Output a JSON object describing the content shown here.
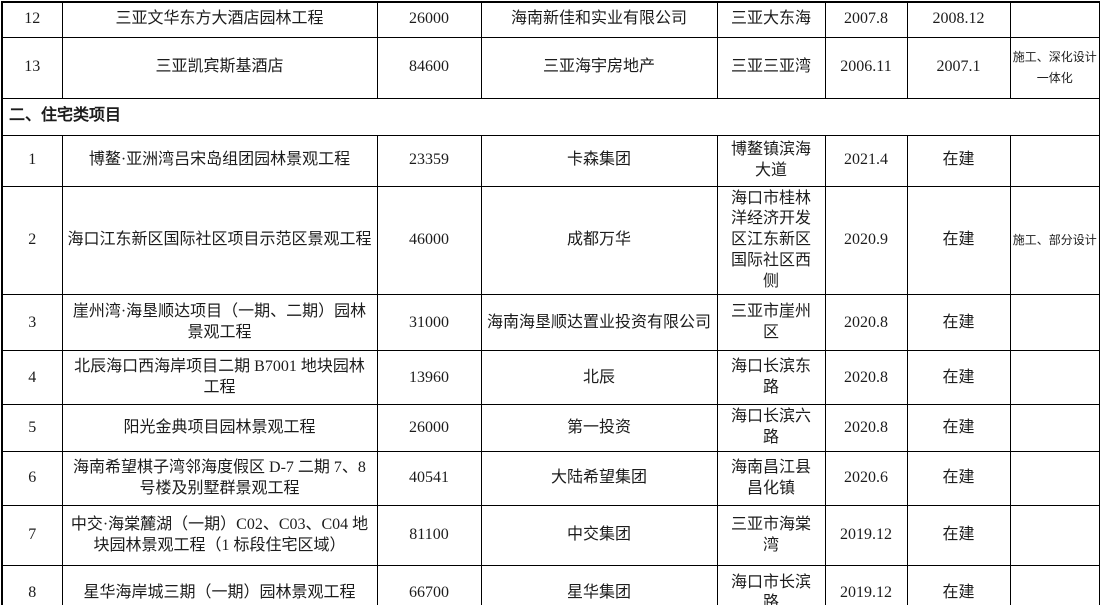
{
  "page": {
    "background_color": "#ffffff",
    "border_color": "#000000",
    "text_color": "#1c1c1c"
  },
  "table": {
    "sections": [
      {
        "heading": null,
        "rows": [
          {
            "no": "12",
            "project": "三亚文华东方大酒店园林工程",
            "area": "26000",
            "client": "海南新佳和实业有限公司",
            "location": "三亚大东海",
            "date": "2007.8",
            "status": "2008.12",
            "note": ""
          },
          {
            "no": "13",
            "project": "三亚凯宾斯基酒店",
            "area": "84600",
            "client": "三亚海宇房地产",
            "location": "三亚三亚湾",
            "date": "2006.11",
            "status": "2007.1",
            "note": "施工、深化设计一体化"
          }
        ]
      },
      {
        "heading": "二、住宅类项目",
        "rows": [
          {
            "no": "1",
            "project": "博鳌·亚洲湾吕宋岛组团园林景观工程",
            "area": "23359",
            "client": "卡森集团",
            "location": "博鳌镇滨海大道",
            "date": "2021.4",
            "status": "在建",
            "note": ""
          },
          {
            "no": "2",
            "project": "海口江东新区国际社区项目示范区景观工程",
            "area": "46000",
            "client": "成都万华",
            "location": "海口市桂林洋经济开发区江东新区国际社区西侧",
            "date": "2020.9",
            "status": "在建",
            "note": "施工、部分设计"
          },
          {
            "no": "3",
            "project": "崖州湾·海垦顺达项目（一期、二期）园林景观工程",
            "area": "31000",
            "client": "海南海垦顺达置业投资有限公司",
            "location": "三亚市崖州区",
            "date": "2020.8",
            "status": "在建",
            "note": ""
          },
          {
            "no": "4",
            "project": "北辰海口西海岸项目二期 B7001 地块园林工程",
            "area": "13960",
            "client": "北辰",
            "location": "海口长滨东路",
            "date": "2020.8",
            "status": "在建",
            "note": ""
          },
          {
            "no": "5",
            "project": "阳光金典项目园林景观工程",
            "area": "26000",
            "client": "第一投资",
            "location": "海口长滨六路",
            "date": "2020.8",
            "status": "在建",
            "note": ""
          },
          {
            "no": "6",
            "project": "海南希望棋子湾邻海度假区 D-7 二期 7、8 号楼及别墅群景观工程",
            "area": "40541",
            "client": "大陆希望集团",
            "location": "海南昌江县昌化镇",
            "date": "2020.6",
            "status": "在建",
            "note": ""
          },
          {
            "no": "7",
            "project": "中交·海棠麓湖（一期）C02、C03、C04 地块园林景观工程（1 标段住宅区域）",
            "area": "81100",
            "client": "中交集团",
            "location": "三亚市海棠湾",
            "date": "2019.12",
            "status": "在建",
            "note": ""
          },
          {
            "no": "8",
            "project": "星华海岸城三期（一期）园林景观工程",
            "area": "66700",
            "client": "星华集团",
            "location": "海口市长滨路",
            "date": "2019.12",
            "status": "在建",
            "note": ""
          }
        ]
      }
    ]
  }
}
